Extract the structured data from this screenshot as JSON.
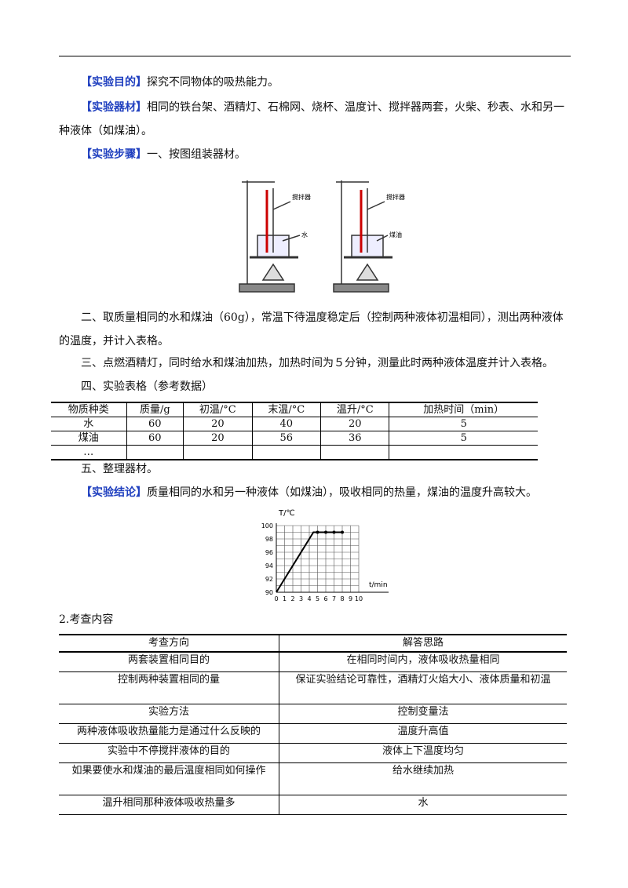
{
  "paragraphs": [
    {
      "label": "【实验目的】",
      "text": "探究不同物体的吸热能力。"
    },
    {
      "label": "【实验器材】",
      "text": "相同的铁台架、酒精灯、石棉网、烧杯、温度计、搅拌器两套，火柴、秒表、水和另一种液体（如煤油）。"
    },
    {
      "label": "【实验步骤】",
      "text": "一、按图组装器材。"
    }
  ],
  "figure": {
    "labels": [
      "搅拌器",
      "水",
      "搅拌器",
      "煤油"
    ]
  },
  "steps": [
    "二、取质量相同的水和煤油（60g），常温下待温度稳定后（控制两种液体初温相同），测出两种液体的温度，并计入表格。",
    "三、点燃酒精灯，同时给水和煤油加热，加热时间为５分钟，测量此时两种液体温度并计入表格。",
    "四、实验表格（参考数据）",
    "五、整理器材。"
  ],
  "table1": {
    "header": [
      "物质种类",
      "质量/g",
      "初温/°C",
      "末温/°C",
      "温升/°C",
      "加热时间（min）"
    ],
    "rows": [
      [
        "水",
        "60",
        "20",
        "40",
        "20",
        "5"
      ],
      [
        "煤油",
        "60",
        "20",
        "56",
        "36",
        "5"
      ],
      [
        "…"
      ]
    ]
  },
  "conclusion": {
    "label": "【实验结论】",
    "text": "质量相同的水和另一种液体（如煤油），吸收相同的热量，煤油的温度升高较大。"
  },
  "graph": {
    "y_label": "T/℃",
    "x_label": "t/min",
    "yticks": [
      90,
      92,
      94,
      96,
      98,
      100
    ],
    "xticks": [
      0,
      1,
      2,
      3,
      4,
      5,
      6,
      7,
      8,
      9,
      10
    ],
    "x": [
      0,
      4.5,
      5,
      6,
      7,
      8
    ],
    "y": [
      90,
      99,
      99,
      99,
      99,
      99
    ]
  },
  "section2": "2.考查内容",
  "table2": {
    "header": [
      "考查方向",
      "解答思路"
    ],
    "rows": [
      [
        "两套装置相同目的",
        "在相同时间内，液体吸收热量相同"
      ],
      [
        "控制两种装置相同的量",
        "保证实验结论可靠性，酒精灯火焰大小、液体质量和初温"
      ],
      [
        "实验方法",
        "控制变量法"
      ],
      [
        "两种液体吸收热量能力是通过什么反映的",
        "温度升高值"
      ],
      [
        "实验中不停搅拌液体的目的",
        "液体上下温度均匀"
      ],
      [
        "如果要使水和煤油的最后温度相同如何操作",
        "给水继续加热"
      ],
      [
        "温升相同那种液体吸收热量多",
        "水"
      ]
    ]
  }
}
